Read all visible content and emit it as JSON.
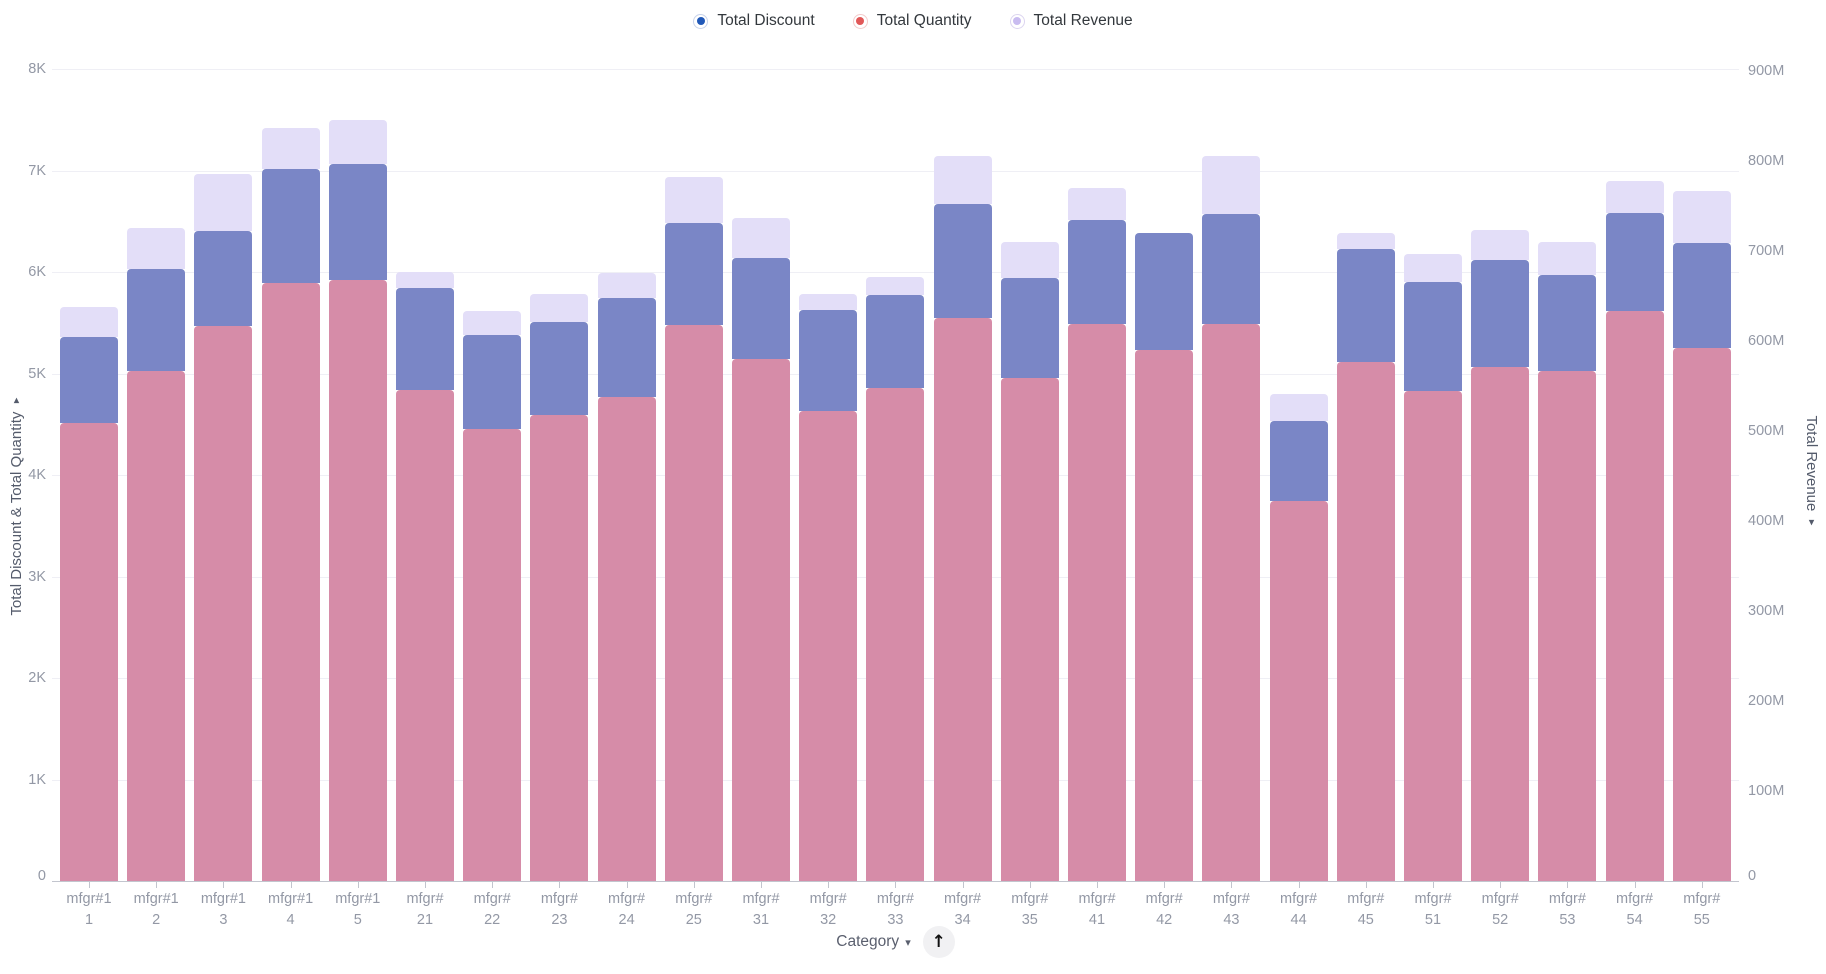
{
  "legend": {
    "items": [
      {
        "label": "Total Discount",
        "dot_color": "#2159b8",
        "ring_color": "#c8d3ea"
      },
      {
        "label": "Total Quantity",
        "dot_color": "#e15858",
        "ring_color": "#f2cccc"
      },
      {
        "label": "Total Revenue",
        "dot_color": "#c9bcf0",
        "ring_color": "#dcd5f0"
      }
    ]
  },
  "left_axis": {
    "title": "Total Discount & Total Quantity",
    "sort_caret": "▾",
    "tick_labels": [
      "0",
      "1K",
      "2K",
      "3K",
      "4K",
      "5K",
      "6K",
      "7K",
      "8K"
    ],
    "range": [
      0,
      8000
    ]
  },
  "right_axis": {
    "title": "Total Revenue",
    "sort_caret": "▾",
    "tick_labels": [
      "0",
      "100M",
      "200M",
      "300M",
      "400M",
      "500M",
      "600M",
      "700M",
      "800M",
      "900M"
    ],
    "range_millions": [
      0,
      900
    ]
  },
  "x_axis": {
    "title": "Category",
    "dropdown_caret": "▾",
    "up_button_glyph": "↑"
  },
  "chart_data": {
    "type": "bar",
    "stacked": true,
    "grid": true,
    "legend_position": "top",
    "categories": [
      "mfgr#11",
      "mfgr#12",
      "mfgr#13",
      "mfgr#14",
      "mfgr#15",
      "mfgr#21",
      "mfgr#22",
      "mfgr#23",
      "mfgr#24",
      "mfgr#25",
      "mfgr#31",
      "mfgr#32",
      "mfgr#33",
      "mfgr#34",
      "mfgr#35",
      "mfgr#41",
      "mfgr#42",
      "mfgr#43",
      "mfgr#44",
      "mfgr#45",
      "mfgr#51",
      "mfgr#52",
      "mfgr#53",
      "mfgr#54",
      "mfgr#55"
    ],
    "category_label_lines": [
      [
        "mfgr#1",
        "1"
      ],
      [
        "mfgr#1",
        "2"
      ],
      [
        "mfgr#1",
        "3"
      ],
      [
        "mfgr#1",
        "4"
      ],
      [
        "mfgr#1",
        "5"
      ],
      [
        "mfgr#",
        "21"
      ],
      [
        "mfgr#",
        "22"
      ],
      [
        "mfgr#",
        "23"
      ],
      [
        "mfgr#",
        "24"
      ],
      [
        "mfgr#",
        "25"
      ],
      [
        "mfgr#",
        "31"
      ],
      [
        "mfgr#",
        "32"
      ],
      [
        "mfgr#",
        "33"
      ],
      [
        "mfgr#",
        "34"
      ],
      [
        "mfgr#",
        "35"
      ],
      [
        "mfgr#",
        "41"
      ],
      [
        "mfgr#",
        "42"
      ],
      [
        "mfgr#",
        "43"
      ],
      [
        "mfgr#",
        "44"
      ],
      [
        "mfgr#",
        "45"
      ],
      [
        "mfgr#",
        "51"
      ],
      [
        "mfgr#",
        "52"
      ],
      [
        "mfgr#",
        "53"
      ],
      [
        "mfgr#",
        "54"
      ],
      [
        "mfgr#",
        "55"
      ]
    ],
    "series": [
      {
        "name": "Total Quantity",
        "axis": "left",
        "stack_order": 0,
        "bar_color": "#d68ca8",
        "values": [
          4510,
          5030,
          5470,
          5895,
          5920,
          4835,
          4450,
          4590,
          4770,
          5480,
          5140,
          4630,
          4855,
          5550,
          4960,
          5485,
          5230,
          5485,
          3740,
          5110,
          4830,
          5060,
          5030,
          5620,
          5255
        ]
      },
      {
        "name": "Total Discount",
        "axis": "left",
        "stack_order": 1,
        "bar_color": "#7a86c6",
        "values": [
          845,
          1000,
          935,
          1125,
          1140,
          1010,
          930,
          920,
          975,
          1005,
          1000,
          1000,
          915,
          1120,
          980,
          1025,
          1160,
          1090,
          790,
          1120,
          1075,
          1055,
          940,
          960,
          1035
        ]
      },
      {
        "name": "Total Revenue",
        "axis": "right",
        "unit": "millions",
        "stack_order": 2,
        "bar_color": "#e3def8",
        "values": [
          34,
          46,
          63,
          45,
          49,
          17,
          27,
          31,
          28,
          51,
          44,
          17,
          20,
          53,
          40,
          36,
          0,
          64,
          30,
          17,
          31,
          34,
          37,
          36,
          57
        ]
      }
    ],
    "left_ylim": [
      0,
      8000
    ],
    "right_ylim_millions": [
      0,
      900
    ],
    "xlabel": "Category",
    "ylabel_left": "Total Discount & Total Quantity",
    "ylabel_right": "Total Revenue"
  },
  "colors": {
    "background": "#ffffff",
    "gridline": "#efeff5",
    "axis_line": "#c2c5ce",
    "tick_text": "#9398a5",
    "axis_title_text": "#545b6b",
    "legend_text": "#33383d",
    "button_bg": "#f1f1f3"
  }
}
